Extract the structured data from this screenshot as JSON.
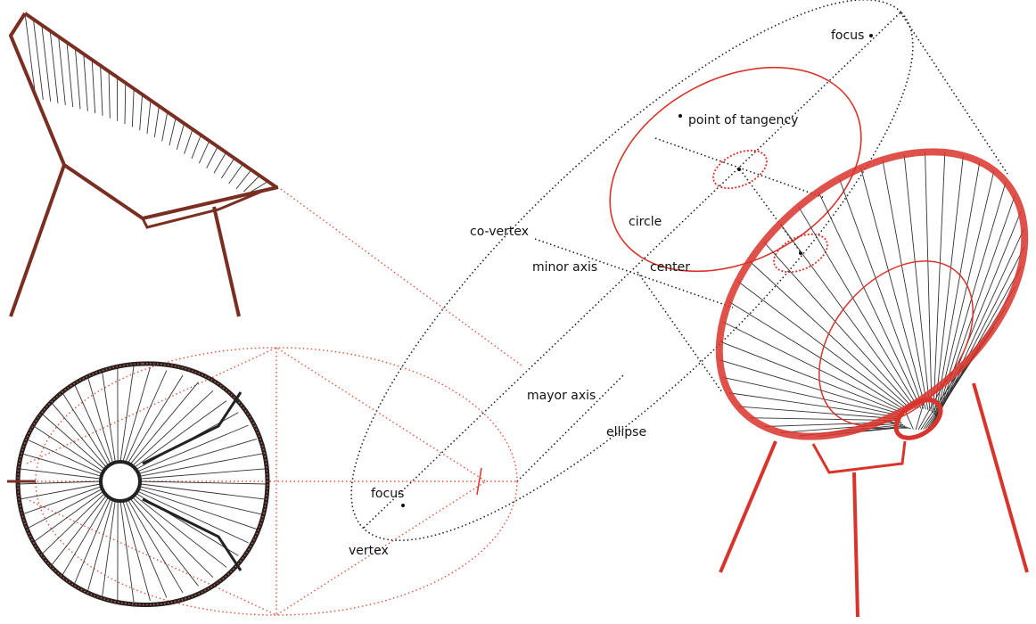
{
  "labels": [
    "focus",
    "point of tangency",
    "circle",
    "co-vertex",
    "minor axis",
    "center",
    "mayor axis",
    "ellipse",
    "focus",
    "vertex"
  ]
}
